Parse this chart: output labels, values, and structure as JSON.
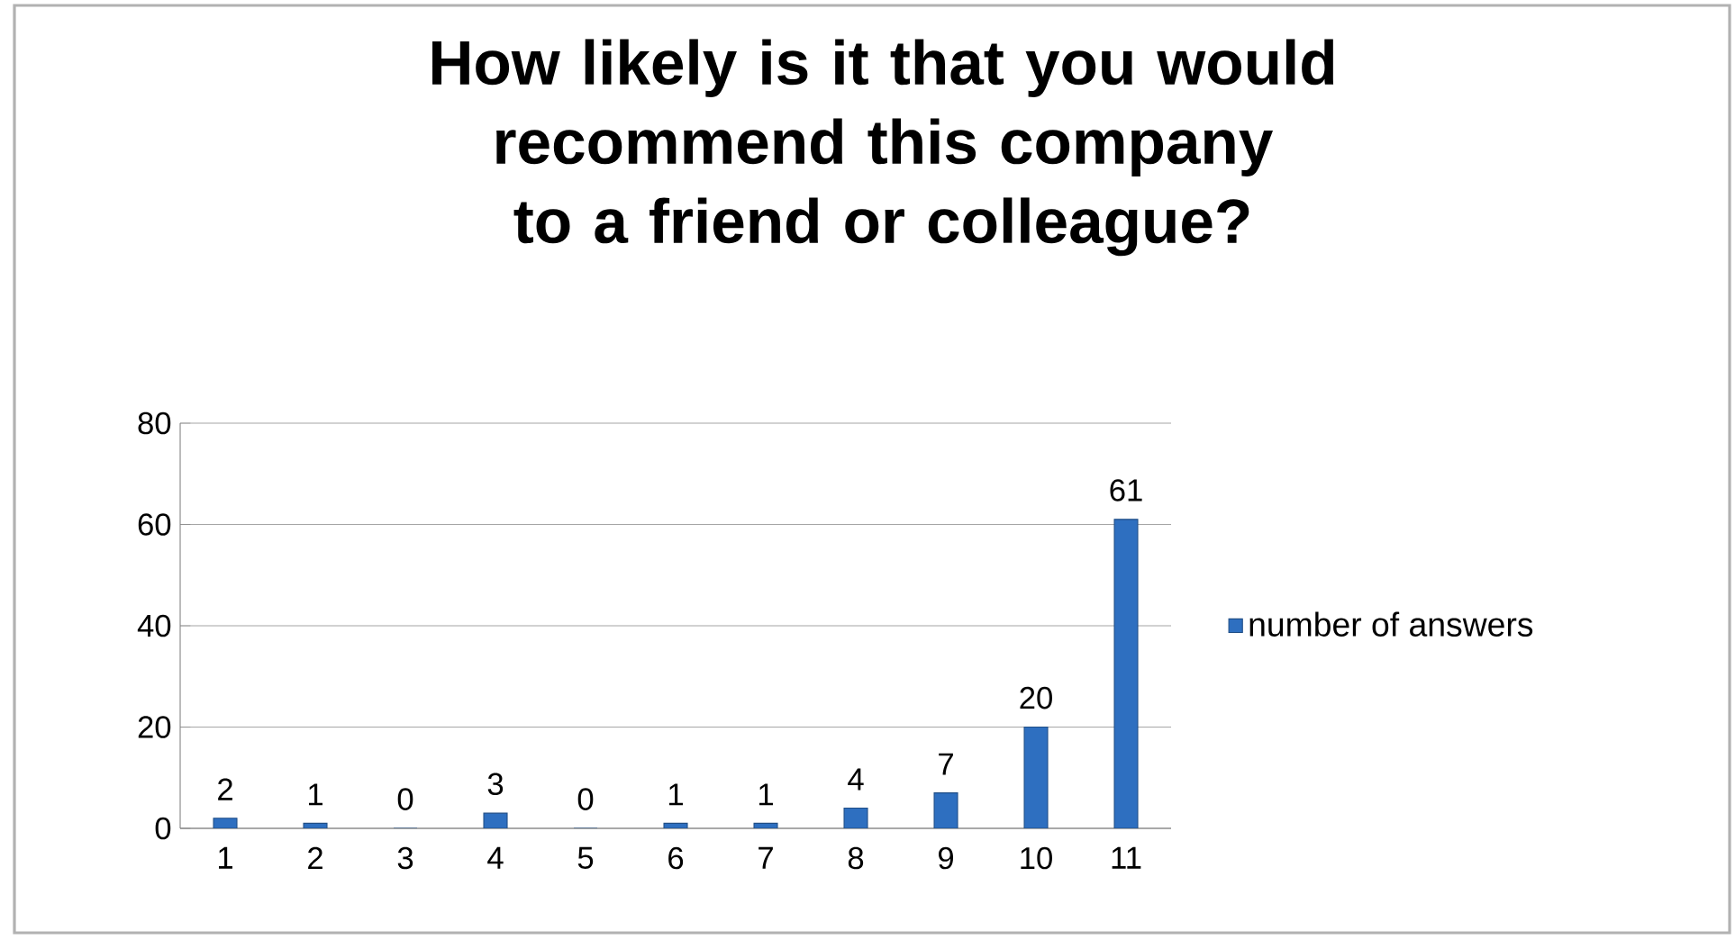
{
  "chart_data": {
    "type": "bar",
    "title": "How likely is it that you would recommend this company to a friend or colleague?",
    "categories": [
      "1",
      "2",
      "3",
      "4",
      "5",
      "6",
      "7",
      "8",
      "9",
      "10",
      "11"
    ],
    "series": [
      {
        "name": "number of answers",
        "color": "#2e6fc0",
        "values": [
          2,
          1,
          0,
          3,
          0,
          1,
          1,
          4,
          7,
          20,
          61
        ]
      }
    ],
    "ylim": [
      0,
      80
    ],
    "yticks": [
      0,
      20,
      40,
      60,
      80
    ],
    "grid": "y",
    "legend": "right",
    "data_labels": true
  }
}
